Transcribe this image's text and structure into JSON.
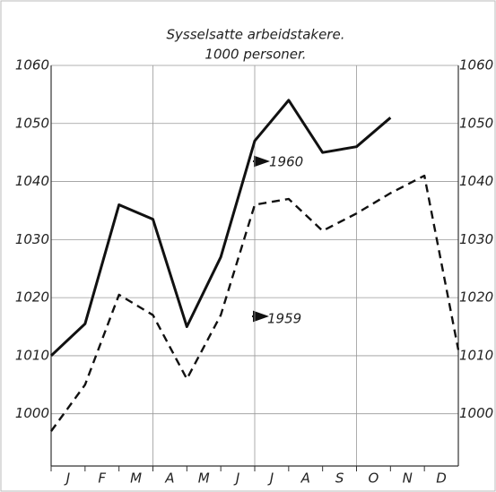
{
  "chart_data": {
    "type": "line",
    "title": "Sysselsatte arbeidstakere.",
    "subtitle": "1000 personer.",
    "categories": [
      "J",
      "F",
      "M",
      "A",
      "M",
      "J",
      "J",
      "A",
      "S",
      "O",
      "N",
      "D"
    ],
    "x": [
      0,
      1,
      2,
      3,
      4,
      5,
      6,
      7,
      8,
      9,
      10,
      11,
      12
    ],
    "xlim": [
      0,
      12
    ],
    "xgrid": [
      3,
      6,
      9
    ],
    "ylim": [
      991,
      1060
    ],
    "yticks": [
      1000,
      1010,
      1020,
      1030,
      1040,
      1050,
      1060
    ],
    "grid": true,
    "series": [
      {
        "name": "1960",
        "color": "#111111",
        "dash": false,
        "values": [
          1010,
          1015.5,
          1036,
          1033.5,
          1015,
          1027,
          1047,
          1054,
          1045,
          1046,
          1051,
          null,
          null
        ]
      },
      {
        "name": "1959",
        "color": "#111111",
        "dash": true,
        "values": [
          997,
          1005,
          1020.5,
          1017,
          1006,
          1017,
          1036,
          1037,
          1031.5,
          1034.5,
          1038,
          1041,
          1011
        ]
      }
    ]
  }
}
